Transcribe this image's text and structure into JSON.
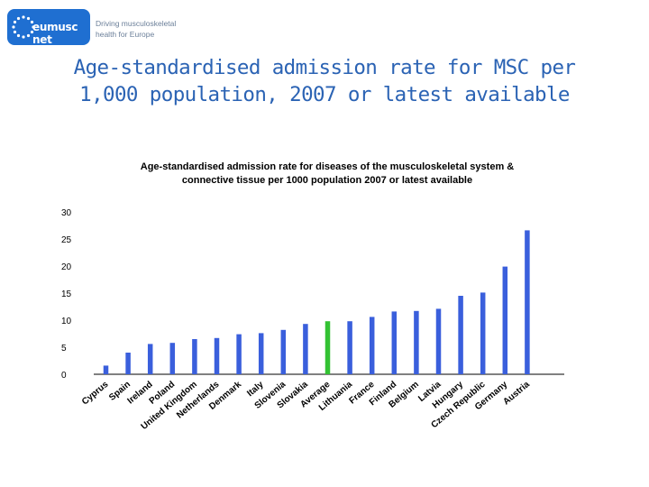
{
  "logo": {
    "name": "eumusc net",
    "tagline_line1": "Driving musculoskeletal",
    "tagline_line2": "health for Europe"
  },
  "slide": {
    "title_line1": "Age-standardised admission rate for MSC per",
    "title_line2": "1,000 population, 2007 or latest available"
  },
  "chart_data": {
    "type": "bar",
    "title_line1": "Age-standardised admission rate for diseases of the musculoskeletal system &",
    "title_line2": "connective tissue  per 1000 population 2007 or latest available",
    "categories": [
      "Cyprus",
      "Spain",
      "Ireland",
      "Poland",
      "United Kingdom",
      "Netherlands",
      "Denmark",
      "Italy",
      "Slovenia",
      "Slovakia",
      "Average",
      "Lithuania",
      "France",
      "Finland",
      "Belgium",
      "Latvia",
      "Hungary",
      "Czech Republic",
      "Germany",
      "Austria"
    ],
    "values": [
      1.6,
      4.0,
      5.6,
      5.8,
      6.5,
      6.7,
      7.4,
      7.6,
      8.2,
      9.3,
      9.8,
      9.8,
      10.6,
      11.6,
      11.7,
      12.1,
      14.5,
      15.1,
      19.9,
      26.6
    ],
    "highlight_category": "Average",
    "yticks": [
      "0",
      "5",
      "10",
      "15",
      "20",
      "25",
      "30"
    ],
    "ylim": [
      0,
      30
    ],
    "colors": {
      "bar": "#3a5fdc",
      "highlight": "#33c233",
      "axis": "#000000"
    }
  }
}
